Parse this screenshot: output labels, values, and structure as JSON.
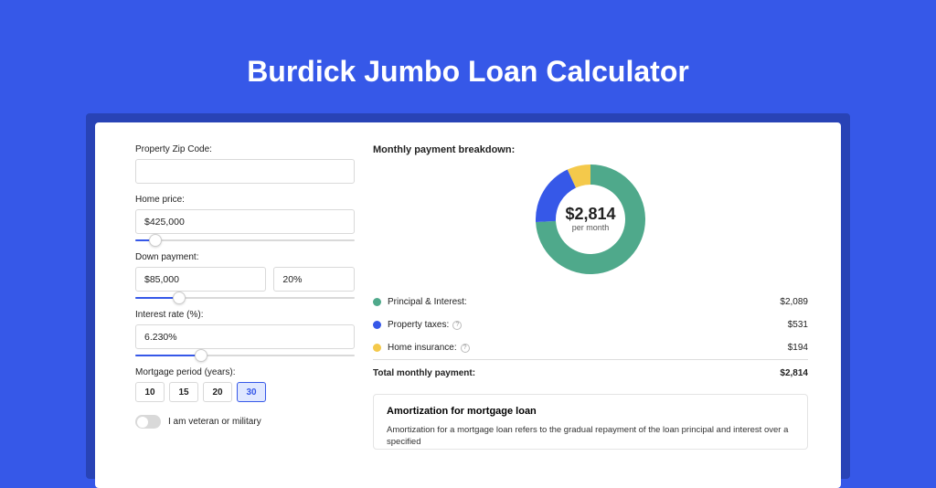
{
  "title": "Burdick Jumbo Loan Calculator",
  "form": {
    "zip": {
      "label": "Property Zip Code:",
      "value": ""
    },
    "home_price": {
      "label": "Home price:",
      "value": "$425,000",
      "slider_pct": 9
    },
    "down_payment": {
      "label": "Down payment:",
      "amount": "$85,000",
      "percent": "20%",
      "slider_pct": 20
    },
    "interest_rate": {
      "label": "Interest rate (%):",
      "value": "6.230%",
      "slider_pct": 30
    },
    "mortgage_period": {
      "label": "Mortgage period (years):",
      "options": [
        "10",
        "15",
        "20",
        "30"
      ],
      "active": "30"
    },
    "veteran": {
      "label": "I am veteran or military",
      "on": false
    }
  },
  "breakdown": {
    "title": "Monthly payment breakdown:",
    "donut": {
      "type": "donut",
      "center_value": "$2,814",
      "center_sub": "per month",
      "diameter": 120,
      "thickness": 22,
      "background_color": "#ffffff",
      "slices": [
        {
          "label": "Principal & Interest",
          "value": 2089,
          "pct": 74.2,
          "color": "#4fa98b"
        },
        {
          "label": "Property taxes",
          "value": 531,
          "pct": 18.9,
          "color": "#3658e8"
        },
        {
          "label": "Home insurance",
          "value": 194,
          "pct": 6.9,
          "color": "#f4c94b"
        }
      ]
    },
    "rows": [
      {
        "dot": "#4fa98b",
        "label": "Principal & Interest:",
        "info": false,
        "value": "$2,089"
      },
      {
        "dot": "#3658e8",
        "label": "Property taxes:",
        "info": true,
        "value": "$531"
      },
      {
        "dot": "#f4c94b",
        "label": "Home insurance:",
        "info": true,
        "value": "$194"
      }
    ],
    "total": {
      "label": "Total monthly payment:",
      "value": "$2,814"
    }
  },
  "amortization": {
    "title": "Amortization for mortgage loan",
    "text": "Amortization for a mortgage loan refers to the gradual repayment of the loan principal and interest over a specified"
  },
  "colors": {
    "brand": "#3658e8",
    "shadow": "#2843b6",
    "green": "#4fa98b",
    "yellow": "#f4c94b"
  }
}
